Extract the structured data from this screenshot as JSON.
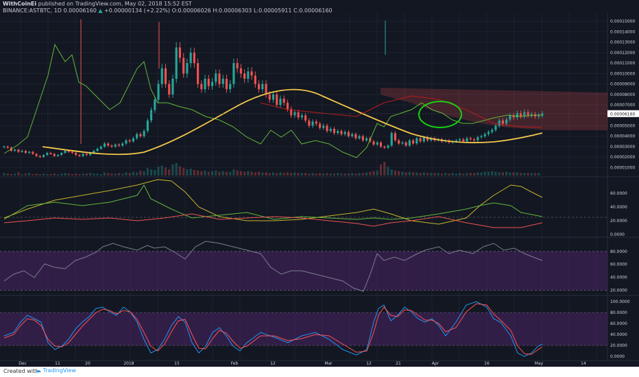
{
  "header": {
    "author": "WithCoinEi",
    "published": "published on TradingView.com, May 02, 2018 15:52 EST",
    "symbol": "BINANCE:ASTBTC, 1D",
    "last": "0.00006160",
    "change": "+0.00000134 (+2.22%)",
    "open_label": "O:",
    "open": "0.00006026",
    "high_label": "H:",
    "high": "0.00006303",
    "low_label": "L:",
    "low": "0.00005911",
    "close_label": "C:",
    "close": "0.00006160"
  },
  "footer": {
    "created": "Created with",
    "brand": "TradingView"
  },
  "colors": {
    "bg": "#131722",
    "grid": "#1e2230",
    "up": "#26a69a",
    "down": "#ef5350",
    "ma": "#f5c84b",
    "green_line": "#63b83a",
    "red_line": "#b71c1c",
    "purple_band": "#4a2466",
    "stoch_k": "#2196f3",
    "stoch_d": "#ff5252",
    "circle": "#14d40e",
    "axis_text": "#d1d4dc"
  },
  "chart_data": [
    {
      "type": "candlestick",
      "title": "BINANCE:ASTBTC, 1D",
      "x_ticks": [
        "Dec",
        "11",
        "20",
        "2018",
        "15",
        "Feb",
        "12",
        "Mar",
        "12",
        "21",
        "Apr",
        "16",
        "May",
        "14"
      ],
      "y_ticks": [
        "0.00015000",
        "0.00014000",
        "0.00013000",
        "0.00012000",
        "0.00011000",
        "0.00010000",
        "0.00009000",
        "0.00008000",
        "0.00007000",
        "0.00005000",
        "0.00004000",
        "0.00003000",
        "0.00002000",
        "0.00001000"
      ],
      "ylim": [
        5e-06,
        0.000156
      ],
      "last_price_label": "0.00006160",
      "close_series": [
        3.0,
        2.9,
        2.6,
        2.7,
        2.5,
        2.6,
        2.4,
        2.5,
        2.3,
        2.1,
        2.0,
        2.2,
        2.4,
        2.3,
        2.1,
        2.2,
        2.4,
        2.6,
        2.5,
        2.4,
        2.2,
        2.1,
        2.3,
        2.2,
        2.4,
        2.6,
        2.8,
        3.0,
        3.3,
        3.1,
        3.0,
        3.2,
        3.1,
        3.3,
        3.6,
        3.5,
        3.8,
        4.2,
        4.0,
        4.5,
        5.5,
        6.5,
        7.5,
        9.0,
        10.5,
        9.0,
        8.0,
        9.5,
        12.5,
        11.5,
        10.0,
        11.0,
        12.0,
        11.0,
        9.0,
        8.5,
        9.5,
        8.8,
        9.2,
        10.0,
        9.0,
        9.5,
        8.5,
        9.0,
        11.0,
        10.5,
        10.0,
        9.5,
        10.2,
        9.8,
        9.0,
        8.5,
        9.0,
        8.0,
        7.5,
        8.0,
        7.0,
        7.6,
        7.2,
        6.6,
        6.0,
        6.3,
        5.8,
        6.0,
        5.5,
        5.0,
        5.4,
        5.2,
        4.8,
        5.0,
        4.5,
        4.7,
        4.3,
        4.5,
        4.2,
        4.4,
        4.0,
        4.2,
        3.8,
        4.0,
        3.6,
        3.8,
        3.5,
        3.2,
        3.4,
        3.0,
        2.9,
        3.1,
        4.3,
        3.6,
        3.3,
        3.4,
        3.1,
        3.6,
        3.3,
        3.8,
        3.5,
        3.9,
        3.6,
        3.8,
        3.6,
        3.7,
        3.5,
        3.6,
        3.4,
        3.5,
        3.6,
        3.7,
        3.5,
        3.8,
        3.7,
        3.6,
        3.9,
        4.0,
        4.2,
        4.4,
        4.6,
        5.0,
        5.5,
        5.2,
        5.6,
        6.0,
        5.8,
        6.2,
        5.9,
        6.3,
        6.0,
        6.1,
        5.9,
        6.0,
        6.16
      ]
    },
    {
      "type": "line",
      "title": "",
      "y_ticks": [
        "60.0000",
        "40.0000",
        "20.0000",
        "0.0000"
      ],
      "ylim": [
        0,
        80
      ]
    },
    {
      "type": "line",
      "title": "",
      "y_ticks": [
        "80.0000",
        "60.0000",
        "40.0000",
        "20.0000"
      ],
      "ylim": [
        14,
        100
      ],
      "bands": [
        20,
        80
      ]
    },
    {
      "type": "line",
      "title": "",
      "y_ticks": [
        "100.0000",
        "80.0000",
        "60.0000",
        "40.0000",
        "20.0000",
        "0.0000"
      ],
      "ylim": [
        -5,
        105
      ],
      "bands": [
        20,
        80
      ]
    }
  ]
}
